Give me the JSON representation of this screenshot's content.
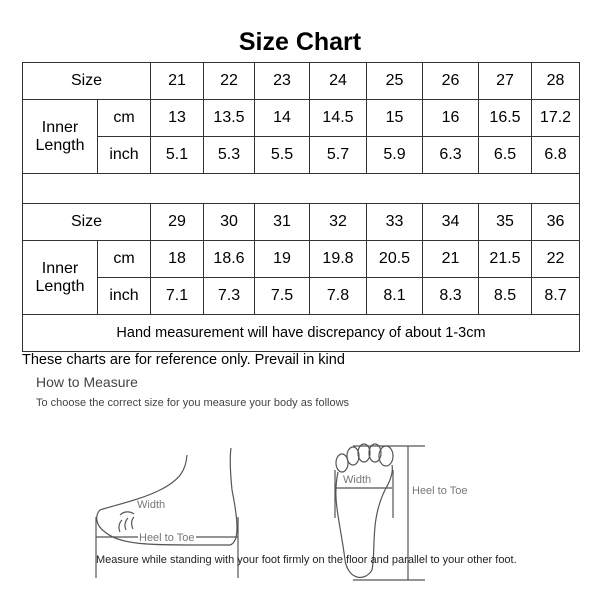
{
  "title": "Size Chart",
  "labels": {
    "size": "Size",
    "inner_length": "Inner Length",
    "inner": "Inner",
    "length": "Length",
    "cm": "cm",
    "inch": "inch"
  },
  "table1": {
    "sizes": [
      "21",
      "22",
      "23",
      "24",
      "25",
      "26",
      "27",
      "28"
    ],
    "cm": [
      "13",
      "13.5",
      "14",
      "14.5",
      "15",
      "16",
      "16.5",
      "17.2"
    ],
    "inch": [
      "5.1",
      "5.3",
      "5.5",
      "5.7",
      "5.9",
      "6.3",
      "6.5",
      "6.8"
    ]
  },
  "table2": {
    "sizes": [
      "29",
      "30",
      "31",
      "32",
      "33",
      "34",
      "35",
      "36"
    ],
    "cm": [
      "18",
      "18.6",
      "19",
      "19.8",
      "20.5",
      "21",
      "21.5",
      "22"
    ],
    "inch": [
      "7.1",
      "7.3",
      "7.5",
      "7.8",
      "8.1",
      "8.3",
      "8.5",
      "8.7"
    ]
  },
  "discrepancy": "Hand measurement will have discrepancy of about 1-3cm",
  "reference_note": "These charts are for reference only. Prevail in kind",
  "how_to": {
    "heading": "How to Measure",
    "subtitle": "To choose the correct size for you measure your body as follows",
    "width_label": "Width",
    "heel_to_toe_label": "Heel to Toe",
    "instruction": "Measure while standing with your foot firmly on the floor and parallel to your other foot."
  }
}
